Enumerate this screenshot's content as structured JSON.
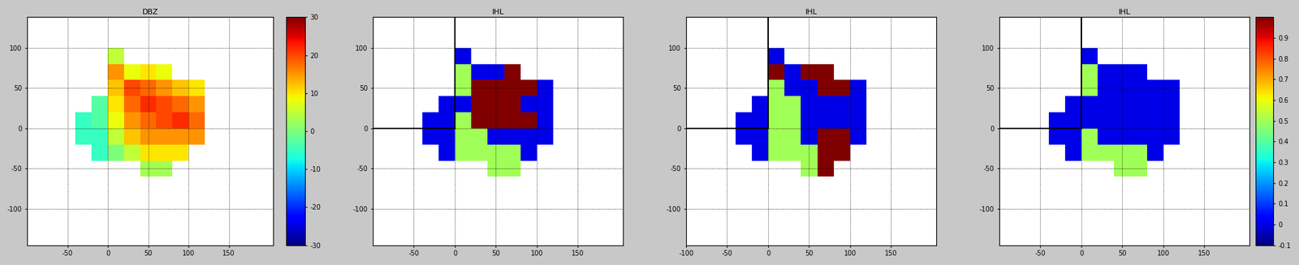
{
  "chart_data": [
    {
      "type": "heatmap",
      "title": "DBZ",
      "xlim": [
        -100,
        205
      ],
      "ylim": [
        -145,
        138
      ],
      "xticks": [
        -50,
        0,
        50,
        100,
        150
      ],
      "yticks": [
        -100,
        -50,
        0,
        50,
        100
      ],
      "grid": true,
      "x_edges": [
        -40,
        -20,
        0,
        20,
        40,
        60,
        80,
        100,
        120,
        140
      ],
      "y_edges": [
        -60,
        -40,
        -20,
        0,
        20,
        40,
        60,
        80,
        100
      ],
      "cells": [
        [
          null,
          null,
          null,
          null,
          3,
          3,
          null,
          null,
          null
        ],
        [
          null,
          -5,
          0,
          5,
          10,
          10,
          10,
          null,
          null
        ],
        [
          -5,
          -5,
          5,
          12,
          15,
          15,
          15,
          15,
          null
        ],
        [
          -5,
          -3,
          8,
          15,
          18,
          20,
          22,
          18,
          null
        ],
        [
          null,
          -3,
          10,
          18,
          22,
          20,
          18,
          15,
          null
        ],
        [
          null,
          null,
          12,
          20,
          18,
          15,
          12,
          10,
          null
        ],
        [
          null,
          null,
          15,
          8,
          10,
          8,
          null,
          null,
          null
        ],
        [
          null,
          null,
          5,
          null,
          null,
          null,
          null,
          null,
          null
        ]
      ],
      "colorbar": {
        "range": [
          -30,
          30
        ],
        "ticks": [
          -30,
          -20,
          -10,
          0,
          10,
          20,
          30
        ]
      }
    },
    {
      "type": "heatmap",
      "title": "IHL",
      "xlim": [
        -100,
        205
      ],
      "ylim": [
        -145,
        138
      ],
      "xticks": [
        -50,
        0,
        50,
        100,
        150
      ],
      "yticks": [
        -100,
        -50,
        0,
        50,
        100
      ],
      "grid": true,
      "box": {
        "x": [
          -100,
          0
        ],
        "y": [
          0,
          138
        ]
      },
      "x_edges": [
        -40,
        -20,
        0,
        20,
        40,
        60,
        80,
        100,
        120,
        140
      ],
      "y_edges": [
        -60,
        -40,
        -20,
        0,
        20,
        40,
        60,
        80,
        100
      ],
      "cells": [
        [
          null,
          null,
          null,
          null,
          0.5,
          0.5,
          null,
          null,
          null
        ],
        [
          null,
          0,
          0.5,
          0.5,
          0.5,
          0.5,
          0,
          null,
          null
        ],
        [
          0,
          0,
          0.5,
          0.5,
          0,
          0,
          0,
          0,
          null
        ],
        [
          0,
          0,
          0.5,
          1,
          1,
          1,
          1,
          0,
          null
        ],
        [
          null,
          0,
          0,
          1,
          1,
          1,
          0,
          0,
          null
        ],
        [
          null,
          null,
          0.5,
          1,
          1,
          1,
          1,
          0,
          null
        ],
        [
          null,
          null,
          0.5,
          0,
          0,
          1,
          null,
          null,
          null
        ],
        [
          null,
          null,
          0,
          null,
          null,
          null,
          null,
          null,
          null
        ]
      ],
      "color_range": [
        -0.1,
        1.0
      ]
    },
    {
      "type": "heatmap",
      "title": "IHL",
      "xlim": [
        -100,
        205
      ],
      "ylim": [
        -145,
        138
      ],
      "xticks": [
        -100,
        -50,
        0,
        50,
        100,
        150
      ],
      "yticks": [
        -100,
        -50,
        0,
        50,
        100
      ],
      "grid": true,
      "box": {
        "x": [
          -100,
          0
        ],
        "y": [
          0,
          138
        ]
      },
      "x_edges": [
        -40,
        -20,
        0,
        20,
        40,
        60,
        80,
        100,
        120,
        140
      ],
      "y_edges": [
        -60,
        -40,
        -20,
        0,
        20,
        40,
        60,
        80,
        100
      ],
      "cells": [
        [
          null,
          null,
          null,
          null,
          0.5,
          1,
          null,
          null,
          null
        ],
        [
          null,
          0,
          0.5,
          0.5,
          0.5,
          1,
          1,
          null,
          null
        ],
        [
          0,
          0,
          0.5,
          0.5,
          0,
          1,
          1,
          0,
          null
        ],
        [
          0,
          0,
          0.5,
          0.5,
          0,
          0,
          0,
          0,
          null
        ],
        [
          null,
          0,
          0.5,
          0.5,
          0,
          0,
          0,
          0,
          null
        ],
        [
          null,
          null,
          0.5,
          0,
          0,
          1,
          1,
          0,
          null
        ],
        [
          null,
          null,
          1,
          0,
          1,
          1,
          null,
          null,
          null
        ],
        [
          null,
          null,
          0,
          null,
          null,
          null,
          null,
          null,
          null
        ]
      ],
      "color_range": [
        -0.1,
        1.0
      ]
    },
    {
      "type": "heatmap",
      "title": "IHL",
      "xlim": [
        -100,
        205
      ],
      "ylim": [
        -145,
        138
      ],
      "xticks": [
        -50,
        0,
        50,
        100,
        150
      ],
      "yticks": [
        -100,
        -50,
        0,
        50,
        100
      ],
      "grid": true,
      "box": {
        "x": [
          -100,
          0
        ],
        "y": [
          0,
          138
        ]
      },
      "x_edges": [
        -40,
        -20,
        0,
        20,
        40,
        60,
        80,
        100,
        120,
        140
      ],
      "y_edges": [
        -60,
        -40,
        -20,
        0,
        20,
        40,
        60,
        80,
        100
      ],
      "cells": [
        [
          null,
          null,
          null,
          null,
          0.5,
          0.5,
          null,
          null,
          null
        ],
        [
          null,
          0,
          0.5,
          0.5,
          0.5,
          0.5,
          0,
          null,
          null
        ],
        [
          0,
          0,
          0.5,
          0,
          0,
          0,
          0,
          0,
          null
        ],
        [
          0,
          0,
          0,
          0,
          0,
          0,
          0,
          0,
          null
        ],
        [
          null,
          0,
          0,
          0,
          0,
          0,
          0,
          0,
          null
        ],
        [
          null,
          null,
          0.5,
          0,
          0,
          0,
          0,
          0,
          null
        ],
        [
          null,
          null,
          0.5,
          0,
          0,
          0,
          null,
          null,
          null
        ],
        [
          null,
          null,
          0,
          null,
          null,
          null,
          null,
          null,
          null
        ]
      ],
      "colorbar": {
        "range": [
          -0.1,
          1.0
        ],
        "ticks": [
          -0.1,
          0,
          0.1,
          0.2,
          0.3,
          0.4,
          0.5,
          0.6,
          0.7,
          0.8,
          0.9
        ]
      }
    }
  ]
}
